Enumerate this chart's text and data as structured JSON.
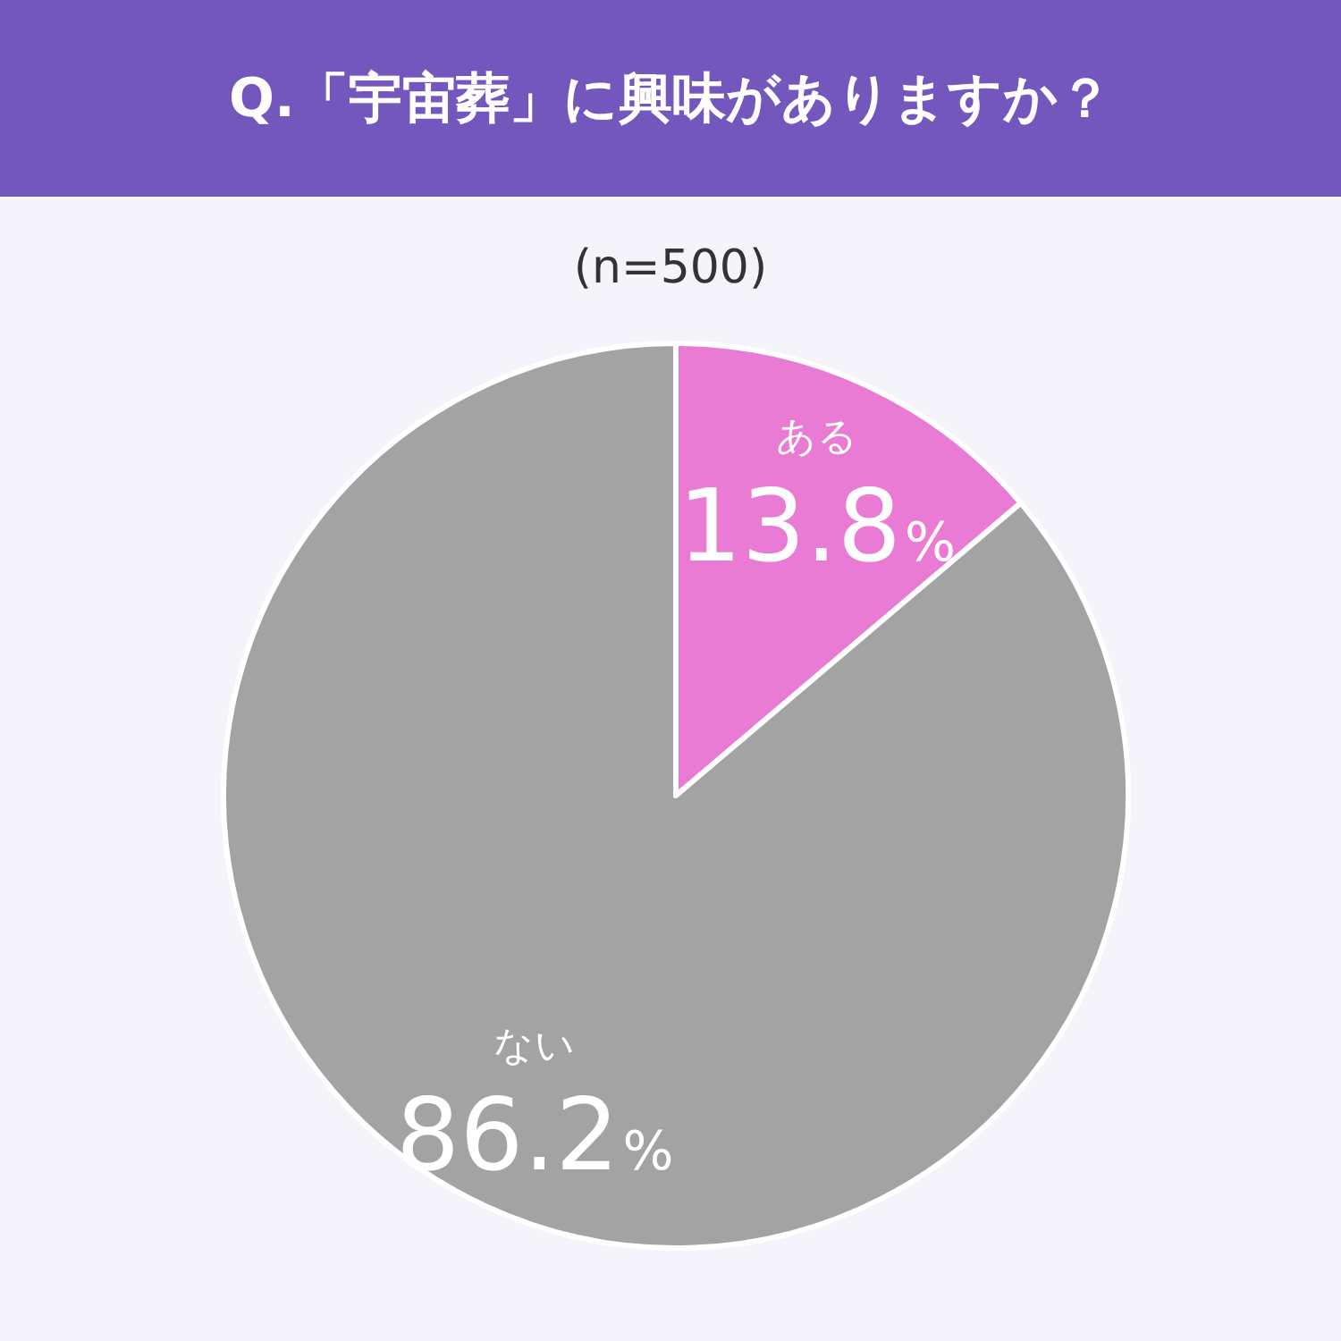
{
  "chart_data": {
    "type": "pie",
    "title": "Q.「宇宙葬」に興味がありますか？",
    "subtitle": "(n=500)",
    "categories": [
      "ある",
      "ない"
    ],
    "values": [
      13.8,
      86.2
    ],
    "value_labels": [
      "13.8%",
      "86.2%"
    ],
    "colors": [
      "#e97bd4",
      "#a3a3a3"
    ]
  }
}
